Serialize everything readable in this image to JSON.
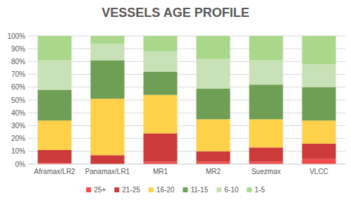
{
  "chart_data": {
    "type": "bar",
    "stacked": true,
    "grid": true,
    "legend": "bottom",
    "title": "VESSELS AGE PROFILE",
    "categories": [
      "Aframax/LR2",
      "Panamax/LR1",
      "MR1",
      "MR2",
      "Suezmax",
      "VLCC"
    ],
    "ylim": [
      0,
      100
    ],
    "yticks": [
      {
        "value": 0,
        "label": "0%"
      },
      {
        "value": 10,
        "label": "10%"
      },
      {
        "value": 20,
        "label": "20%"
      },
      {
        "value": 30,
        "label": "30%"
      },
      {
        "value": 40,
        "label": "40%"
      },
      {
        "value": 50,
        "label": "50%"
      },
      {
        "value": 60,
        "label": "60%"
      },
      {
        "value": 70,
        "label": "70%"
      },
      {
        "value": 80,
        "label": "80%"
      },
      {
        "value": 90,
        "label": "90%"
      },
      {
        "value": 100,
        "label": "100%"
      }
    ],
    "series": [
      {
        "name": "25+",
        "color": "#f24b4b",
        "values": [
          1,
          0,
          2,
          2,
          2,
          4
        ]
      },
      {
        "name": "21-25",
        "color": "#cc3a3a",
        "values": [
          10,
          7,
          22,
          8,
          11,
          12
        ]
      },
      {
        "name": "16-20",
        "color": "#ffd04a",
        "values": [
          23,
          44,
          30,
          25,
          22,
          18
        ]
      },
      {
        "name": "11-15",
        "color": "#6f9e55",
        "values": [
          24,
          30,
          18,
          24,
          27,
          26
        ]
      },
      {
        "name": "6-10",
        "color": "#c9e1b6",
        "values": [
          23,
          13,
          16,
          23,
          19,
          18
        ]
      },
      {
        "name": "1-5",
        "color": "#a9d88b",
        "values": [
          19,
          6,
          12,
          18,
          19,
          22
        ]
      }
    ]
  }
}
